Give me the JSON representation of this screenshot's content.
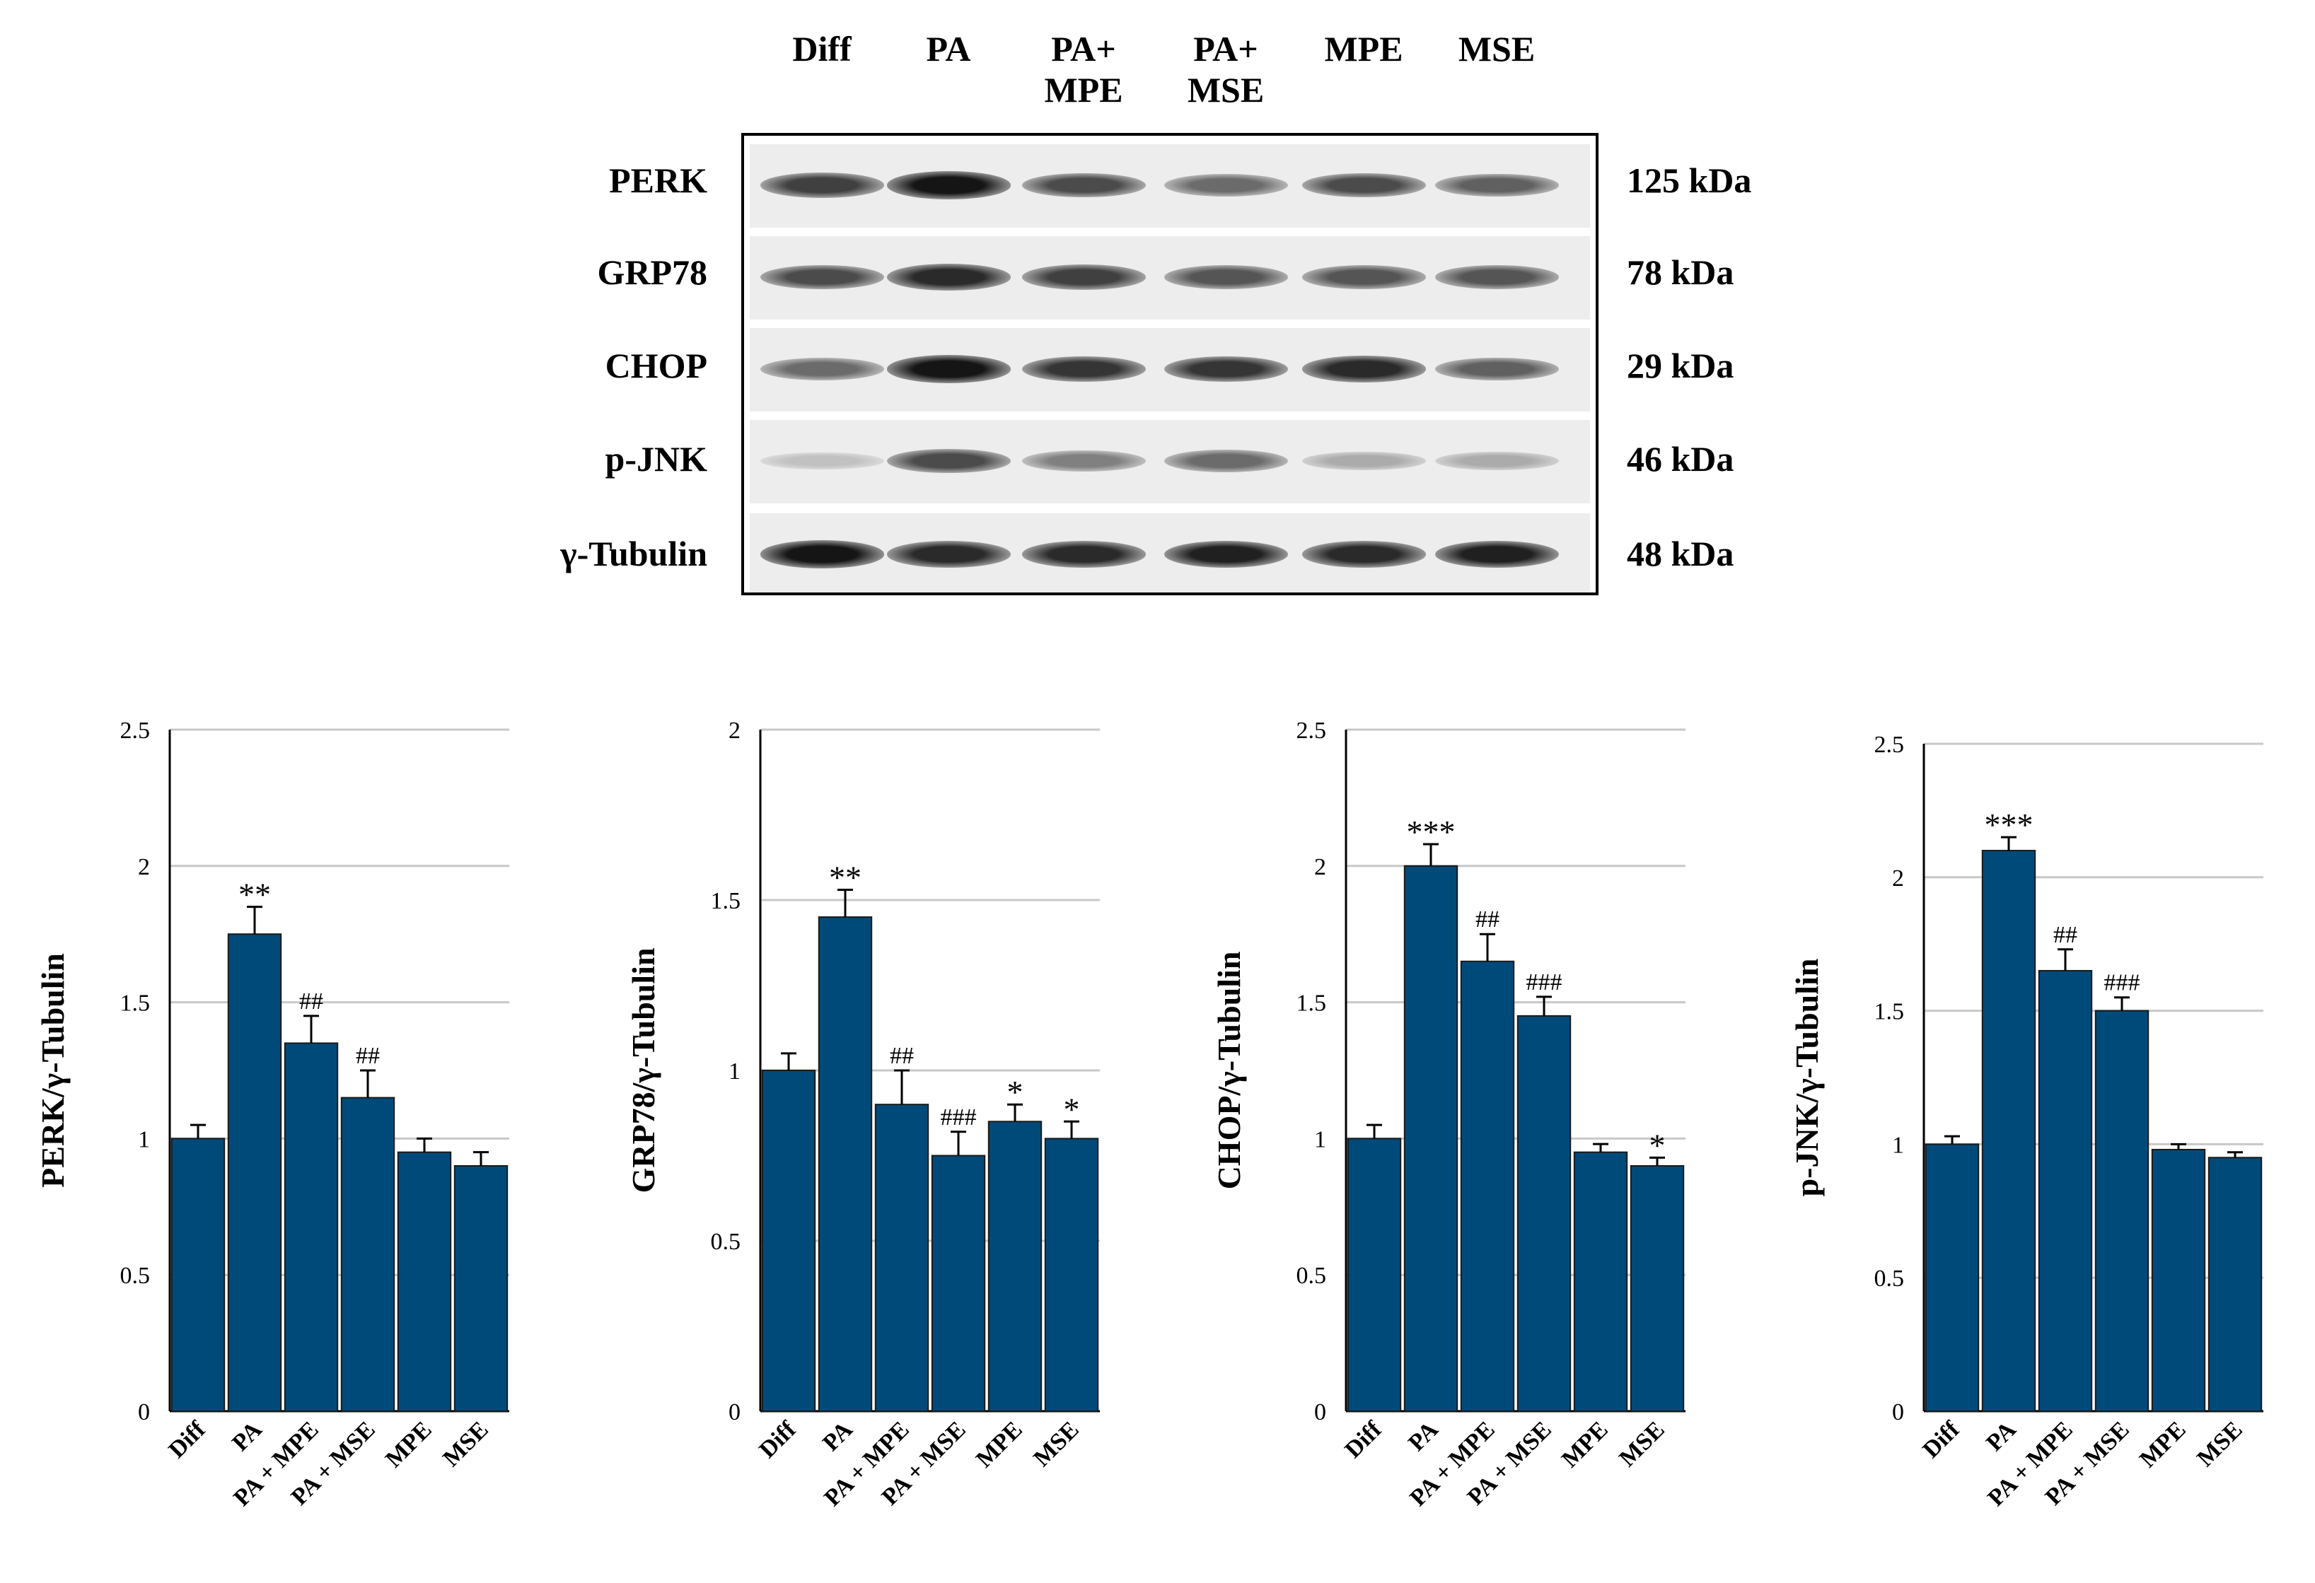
{
  "blot": {
    "lanes": [
      "Diff",
      "PA",
      "PA+\nMPE",
      "PA+\nMSE",
      "MPE",
      "MSE"
    ],
    "rows": [
      {
        "protein": "PERK",
        "kda": "125 kDa",
        "intensity": [
          0.75,
          0.95,
          0.7,
          0.55,
          0.7,
          0.6
        ]
      },
      {
        "protein": "GRP78",
        "kda": "78 kDa",
        "intensity": [
          0.7,
          0.85,
          0.75,
          0.65,
          0.65,
          0.65
        ]
      },
      {
        "protein": "CHOP",
        "kda": "29 kDa",
        "intensity": [
          0.55,
          0.95,
          0.8,
          0.8,
          0.85,
          0.6
        ]
      },
      {
        "protein": "p-JNK",
        "kda": "46 kDa",
        "intensity": [
          0.15,
          0.7,
          0.45,
          0.55,
          0.25,
          0.25
        ]
      },
      {
        "protein": "γ-Tubulin",
        "kda": "48 kDa",
        "intensity": [
          0.95,
          0.85,
          0.85,
          0.9,
          0.85,
          0.9
        ]
      }
    ]
  },
  "chart_data": [
    {
      "type": "bar",
      "categories": [
        "Diff",
        "PA",
        "PA + MPE",
        "PA + MSE",
        "MPE",
        "MSE"
      ],
      "values": [
        1.0,
        1.75,
        1.35,
        1.15,
        0.95,
        0.9
      ],
      "errors": [
        0.05,
        0.1,
        0.1,
        0.1,
        0.05,
        0.05
      ],
      "annotations": [
        "",
        "**",
        "##",
        "##",
        "",
        ""
      ],
      "ylabel": "PERK/γ-Tubulin",
      "ylim": [
        0,
        2.5
      ],
      "yticks": [
        "0",
        "0.5",
        "1",
        "1.5",
        "2",
        "2.5"
      ],
      "grid": true,
      "color": "#004a7a"
    },
    {
      "type": "bar",
      "categories": [
        "Diff",
        "PA",
        "PA + MPE",
        "PA + MSE",
        "MPE",
        "MSE"
      ],
      "values": [
        1.0,
        1.45,
        0.9,
        0.75,
        0.85,
        0.8
      ],
      "errors": [
        0.05,
        0.08,
        0.1,
        0.07,
        0.05,
        0.05
      ],
      "annotations": [
        "",
        "**",
        "##",
        "###",
        "*",
        "*"
      ],
      "ylabel": "GRP78/γ-Tubulin",
      "ylim": [
        0,
        2
      ],
      "yticks": [
        "0",
        "0.5",
        "1",
        "1.5",
        "2"
      ],
      "grid": true,
      "color": "#004a7a"
    },
    {
      "type": "bar",
      "categories": [
        "Diff",
        "PA",
        "PA + MPE",
        "PA + MSE",
        "MPE",
        "MSE"
      ],
      "values": [
        1.0,
        2.0,
        1.65,
        1.45,
        0.95,
        0.9
      ],
      "errors": [
        0.05,
        0.08,
        0.1,
        0.07,
        0.03,
        0.03
      ],
      "annotations": [
        "",
        "***",
        "##",
        "###",
        "",
        "*"
      ],
      "ylabel": "CHOP/γ-Tubulin",
      "ylim": [
        0,
        2.5
      ],
      "yticks": [
        "0",
        "0.5",
        "1",
        "1.5",
        "2",
        "2.5"
      ],
      "grid": true,
      "color": "#004a7a"
    },
    {
      "type": "bar",
      "categories": [
        "Diff",
        "PA",
        "PA + MPE",
        "PA + MSE",
        "MPE",
        "MSE"
      ],
      "values": [
        1.0,
        2.1,
        1.65,
        1.5,
        0.98,
        0.95
      ],
      "errors": [
        0.03,
        0.05,
        0.08,
        0.05,
        0.02,
        0.02
      ],
      "annotations": [
        "",
        "***",
        "##",
        "###",
        "",
        ""
      ],
      "ylabel": "p-JNK/γ-Tubulin",
      "ylim": [
        0,
        2.5
      ],
      "yticks": [
        "0",
        "0.5",
        "1",
        "1.5",
        "2",
        "2.5"
      ],
      "grid": true,
      "color": "#004a7a"
    }
  ]
}
